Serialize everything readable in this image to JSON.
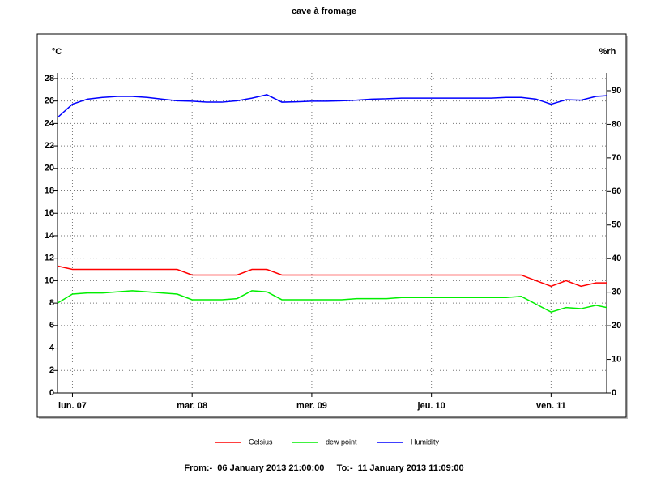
{
  "chart_data": {
    "type": "line",
    "title": "cave à fromage",
    "y_label": "°C",
    "y2_label": "%rh",
    "footer": "From:-  06 January 2013 21:00:00     To:-  11 January 2013 11:09:00",
    "x": [
      "2013-01-06 21:00",
      "2013-01-07 00:00",
      "2013-01-07 03:00",
      "2013-01-07 06:00",
      "2013-01-07 09:00",
      "2013-01-07 12:00",
      "2013-01-07 15:00",
      "2013-01-07 18:00",
      "2013-01-07 21:00",
      "2013-01-08 00:00",
      "2013-01-08 03:00",
      "2013-01-08 06:00",
      "2013-01-08 09:00",
      "2013-01-08 12:00",
      "2013-01-08 15:00",
      "2013-01-08 18:00",
      "2013-01-08 21:00",
      "2013-01-09 00:00",
      "2013-01-09 03:00",
      "2013-01-09 06:00",
      "2013-01-09 09:00",
      "2013-01-09 12:00",
      "2013-01-09 15:00",
      "2013-01-09 18:00",
      "2013-01-09 21:00",
      "2013-01-10 00:00",
      "2013-01-10 03:00",
      "2013-01-10 06:00",
      "2013-01-10 09:00",
      "2013-01-10 12:00",
      "2013-01-10 15:00",
      "2013-01-10 18:00",
      "2013-01-10 21:00",
      "2013-01-11 00:00",
      "2013-01-11 03:00",
      "2013-01-11 06:00",
      "2013-01-11 09:00",
      "2013-01-11 11:09"
    ],
    "xlim": [
      "2013-01-06 21:00",
      "2013-01-11 11:09"
    ],
    "xticks": [
      {
        "value": "2013-01-07 00:00",
        "label": "lun. 07"
      },
      {
        "value": "2013-01-08 00:00",
        "label": "mar. 08"
      },
      {
        "value": "2013-01-09 00:00",
        "label": "mer. 09"
      },
      {
        "value": "2013-01-10 00:00",
        "label": "jeu. 10"
      },
      {
        "value": "2013-01-11 00:00",
        "label": "ven. 11"
      }
    ],
    "ylim": [
      0,
      28.5
    ],
    "yticks": [
      0,
      2,
      4,
      6,
      8,
      10,
      12,
      14,
      16,
      18,
      20,
      22,
      24,
      26,
      28
    ],
    "y2lim": [
      0,
      95.3
    ],
    "y2ticks": [
      0,
      10,
      20,
      30,
      40,
      50,
      60,
      70,
      80,
      90
    ],
    "grid": true,
    "series": [
      {
        "name": "Celsius",
        "color": "#ff0000",
        "values": [
          11.3,
          11,
          11,
          11,
          11,
          11,
          11,
          11,
          11,
          10.5,
          10.5,
          10.5,
          10.5,
          11,
          11,
          10.5,
          10.5,
          10.5,
          10.5,
          10.5,
          10.5,
          10.5,
          10.5,
          10.5,
          10.5,
          10.5,
          10.5,
          10.5,
          10.5,
          10.5,
          10.5,
          10.5,
          10,
          9.5,
          10,
          9.5,
          9.8,
          9.8
        ]
      },
      {
        "name": "dew point",
        "color": "#00ee00",
        "values": [
          8.0,
          8.8,
          8.9,
          8.9,
          9.0,
          9.1,
          9.0,
          8.9,
          8.8,
          8.3,
          8.3,
          8.3,
          8.4,
          9.1,
          9.0,
          8.3,
          8.3,
          8.3,
          8.3,
          8.3,
          8.4,
          8.4,
          8.4,
          8.5,
          8.5,
          8.5,
          8.5,
          8.5,
          8.5,
          8.5,
          8.5,
          8.6,
          7.9,
          7.2,
          7.6,
          7.5,
          7.8,
          7.6
        ]
      },
      {
        "name": "Humidity",
        "color": "#0000ff",
        "axis": "y2",
        "values": [
          82,
          86,
          87.5,
          88,
          88.3,
          88.3,
          88,
          87.5,
          87,
          86.9,
          86.6,
          86.6,
          87,
          87.8,
          88.8,
          86.6,
          86.7,
          86.9,
          86.9,
          87,
          87.2,
          87.5,
          87.6,
          87.8,
          87.8,
          87.8,
          87.8,
          87.8,
          87.8,
          87.8,
          88,
          88,
          87.5,
          86,
          87.3,
          87.2,
          88.3,
          88.5
        ]
      }
    ]
  }
}
